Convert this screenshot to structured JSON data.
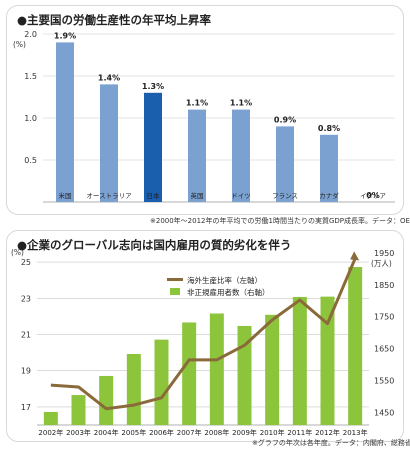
{
  "chart_data": [
    {
      "type": "bar",
      "title": "●主要国の労働生産性の年平均上昇率",
      "ylabel": "(%)",
      "ylim": [
        0,
        2.0
      ],
      "yticks": [
        "0.5",
        "1.0",
        "1.5",
        "2.0"
      ],
      "categories": [
        "米国",
        "オーストラリア",
        "日本",
        "英国",
        "ドイツ",
        "フランス",
        "カナダ",
        "イタリア"
      ],
      "values": [
        1.9,
        1.4,
        1.3,
        1.1,
        1.1,
        0.9,
        0.8,
        0.0
      ],
      "data_labels": [
        "1.9%",
        "1.4%",
        "1.3%",
        "1.1%",
        "1.1%",
        "0.9%",
        "0.8%",
        "0%"
      ],
      "colors": {
        "default": "#7ba1d1",
        "highlight": "#1a5fad"
      },
      "highlight_category": "日本",
      "grid": true,
      "note": "※2000年～2012年の年平均での労働1時間当たりの実質GDP成長率。データ：OECD"
    },
    {
      "type": "bar+line",
      "title": "●企業のグローバル志向は国内雇用の質的劣化を伴う",
      "categories": [
        "2002年",
        "2003年",
        "2004年",
        "2005年",
        "2006年",
        "2007年",
        "2008年",
        "2009年",
        "2010年",
        "2011年",
        "2012年",
        "2013年"
      ],
      "left_axis": {
        "unit": "(%)",
        "range": [
          16,
          25.5
        ],
        "ticks": [
          "17",
          "19",
          "21",
          "23",
          "25"
        ]
      },
      "right_axis": {
        "unit": "(万人)",
        "range": [
          1410,
          1950
        ],
        "ticks": [
          "1450",
          "1550",
          "1650",
          "1750",
          "1850",
          "1950"
        ]
      },
      "series": [
        {
          "name": "海外生産比率（左軸）",
          "type": "line",
          "axis": "left",
          "color": "#8a6a3a",
          "values": [
            18.2,
            18.1,
            16.9,
            17.1,
            17.5,
            19.6,
            19.6,
            20.4,
            21.8,
            22.9,
            21.6,
            25.2
          ]
        },
        {
          "name": "非正規雇用者数（右軸）",
          "type": "bar",
          "axis": "right",
          "color": "#8cc43c",
          "values": [
            1451,
            1504,
            1564,
            1633,
            1678,
            1732,
            1760,
            1721,
            1756,
            1812,
            1813,
            1906
          ]
        }
      ],
      "legend_position": "top-center",
      "grid": true,
      "note": "※グラフの年次は各年度。データ：内閣府、総務省"
    }
  ]
}
